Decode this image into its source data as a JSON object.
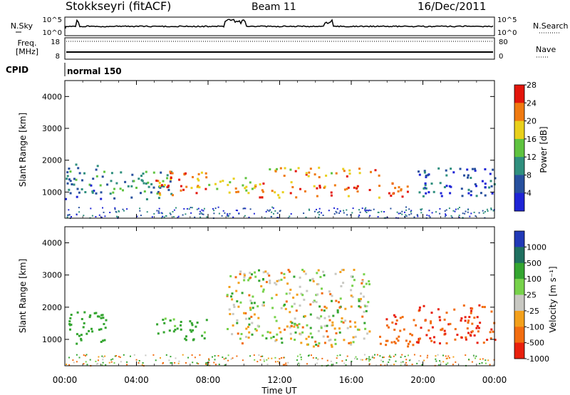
{
  "header": {
    "station": "Stokkseyri (fitACF)",
    "beam": "Beam 11",
    "date": "16/Dec/2011"
  },
  "params": {
    "nsky_label": "N.Sky",
    "nsky_ticks": [
      "10^5",
      "10^0"
    ],
    "nsearch_label": "N.Search",
    "nsearch_ticks": [
      "10^5",
      "10^0"
    ],
    "freq_label": "Freq.",
    "freq_unit": "[MHz]",
    "freq_ticks": [
      "18",
      "8"
    ],
    "nave_label": "Nave",
    "nave_ticks": [
      "80",
      "0"
    ],
    "cpid_label": "CPID",
    "cpid_value": "normal 150"
  },
  "chart_data": [
    {
      "type": "heatmap",
      "name": "power",
      "ylabel": "Slant Range [km]",
      "yticks": [
        "1000",
        "2000",
        "3000",
        "4000"
      ],
      "ylim": [
        180,
        4500
      ],
      "xlim": [
        0,
        24
      ],
      "colorbar": {
        "label": "Power [dB]",
        "ticks": [
          "4",
          "8",
          "12",
          "16",
          "20",
          "24",
          "28"
        ],
        "colors": [
          "#1e24d6",
          "#27509e",
          "#2f8f7e",
          "#5fc340",
          "#e9d01b",
          "#f07a10",
          "#e3150b"
        ]
      },
      "regions": [
        {
          "t": [
            0.0,
            2.3
          ],
          "r": [
            800,
            1900
          ],
          "v": 12
        },
        {
          "t": [
            2.3,
            6.0
          ],
          "r": [
            800,
            1700
          ],
          "v": 14
        },
        {
          "t": [
            5.0,
            8.0
          ],
          "r": [
            900,
            1700
          ],
          "v": 27
        },
        {
          "t": [
            8.0,
            10.5
          ],
          "r": [
            1000,
            1500
          ],
          "v": 20
        },
        {
          "t": [
            10.5,
            13.0
          ],
          "r": [
            850,
            1350
          ],
          "v": 26
        },
        {
          "t": [
            11.0,
            17.5
          ],
          "r": [
            1500,
            1800
          ],
          "v": 24
        },
        {
          "t": [
            13.0,
            17.0
          ],
          "r": [
            900,
            1250
          ],
          "v": 27
        },
        {
          "t": [
            17.5,
            19.5
          ],
          "r": [
            850,
            1350
          ],
          "v": 27
        },
        {
          "t": [
            19.5,
            24.0
          ],
          "r": [
            900,
            1800
          ],
          "v": 10
        }
      ]
    },
    {
      "type": "heatmap",
      "name": "velocity",
      "ylabel": "Slant Range [km]",
      "xlabel": "Time UT",
      "yticks": [
        "1000",
        "2000",
        "3000",
        "4000"
      ],
      "xticks": [
        "00:00",
        "04:00",
        "08:00",
        "12:00",
        "16:00",
        "20:00",
        "00:00"
      ],
      "ylim": [
        180,
        4500
      ],
      "xlim": [
        0,
        24
      ],
      "colorbar": {
        "label": "Velocity [m s⁻¹]",
        "ticks": [
          "1000",
          "500",
          "100",
          "25",
          "-25",
          "-100",
          "-500",
          "-1000"
        ],
        "colors": [
          "#2139b7",
          "#1f7060",
          "#34a530",
          "#77d24b",
          "#c8c8c2",
          "#f3a01b",
          "#f26d10",
          "#e9200d"
        ]
      },
      "regions": [
        {
          "t": [
            0.0,
            2.3
          ],
          "r": [
            800,
            1900
          ],
          "v": 200
        },
        {
          "t": [
            5.0,
            8.0
          ],
          "r": [
            1000,
            1700
          ],
          "v": 120
        },
        {
          "t": [
            9.0,
            17.0
          ],
          "r": [
            800,
            3200
          ],
          "v": 0
        },
        {
          "t": [
            17.5,
            19.5
          ],
          "r": [
            800,
            1800
          ],
          "v": -250
        },
        {
          "t": [
            19.5,
            24.0
          ],
          "r": [
            900,
            2100
          ],
          "v": -300
        }
      ]
    }
  ]
}
